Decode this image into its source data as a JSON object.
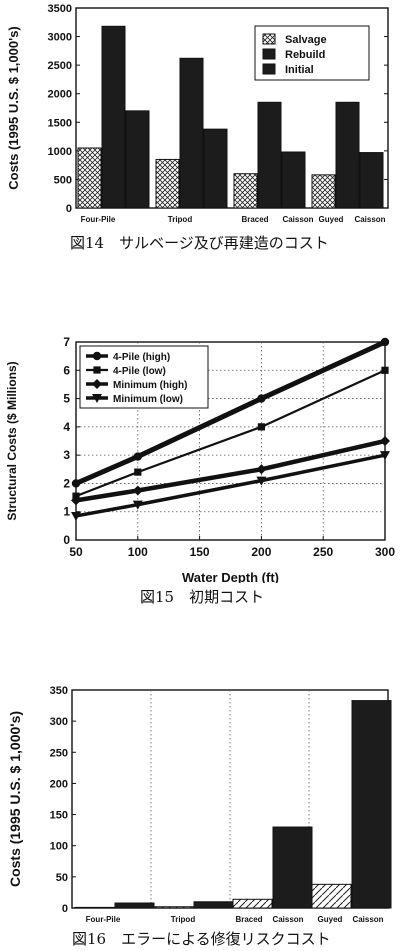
{
  "chart_data": [
    {
      "type": "bar",
      "ylabel": "Costs (1995 U.S. $ 1,000's)",
      "ylim": [
        0,
        3500
      ],
      "yticks": [
        "0",
        "500",
        "1000",
        "1500",
        "2000",
        "2500",
        "3000",
        "3500"
      ],
      "xtick_labels": [
        "Four-Pile",
        "Tripod",
        "Braced",
        "Caisson",
        "Guyed",
        "Caisson"
      ],
      "groups": [
        "Four-Pile",
        "Tripod",
        "Braced Caisson",
        "Guyed Caisson"
      ],
      "series": [
        {
          "name": "Salvage",
          "values": [
            1050,
            850,
            600,
            580
          ]
        },
        {
          "name": "Rebuild",
          "values": [
            3180,
            2620,
            1850,
            1850
          ]
        },
        {
          "name": "Initial",
          "values": [
            1700,
            1380,
            980,
            970
          ]
        }
      ],
      "legend": "top-right",
      "caption": "図14　サルベージ及び再建造のコスト"
    },
    {
      "type": "line",
      "xlabel": "Water Depth (ft)",
      "ylabel": "Structural Costs ($ Millions)",
      "xlim": [
        50,
        300
      ],
      "ylim": [
        0,
        7
      ],
      "xticks": [
        "50",
        "100",
        "150",
        "200",
        "250",
        "300"
      ],
      "yticks": [
        "0",
        "1",
        "2",
        "3",
        "4",
        "5",
        "6",
        "7"
      ],
      "x": [
        50,
        100,
        200,
        300
      ],
      "series": [
        {
          "name": "4-Pile  (high)",
          "values": [
            2.0,
            2.95,
            5.0,
            7.0
          ]
        },
        {
          "name": "4-Pile  (low)",
          "values": [
            1.55,
            2.4,
            4.0,
            6.0
          ]
        },
        {
          "name": "Minimum  (high)",
          "values": [
            1.4,
            1.75,
            2.5,
            3.5
          ]
        },
        {
          "name": "Minimum  (low)",
          "values": [
            0.85,
            1.25,
            2.1,
            3.0
          ]
        }
      ],
      "legend": "top-left",
      "grid": true,
      "caption": "図15　初期コスト"
    },
    {
      "type": "bar",
      "ylabel": "Costs (1995 U.S. $ 1,000's)",
      "ylim": [
        0,
        350
      ],
      "yticks": [
        "0",
        "50",
        "100",
        "150",
        "200",
        "250",
        "300",
        "350"
      ],
      "xtick_labels": [
        "Four-Pile",
        "Tripod",
        "Braced",
        "Caisson",
        "Guyed",
        "Caisson"
      ],
      "groups": [
        "Four-Pile",
        "Tripod",
        "Braced Caisson",
        "Guyed Caisson"
      ],
      "series": [
        {
          "values": [
            1,
            2,
            14,
            38
          ]
        },
        {
          "values": [
            8,
            10,
            130,
            333
          ]
        }
      ],
      "grid": true,
      "caption": "図16　エラーによる修復リスクコスト"
    }
  ]
}
